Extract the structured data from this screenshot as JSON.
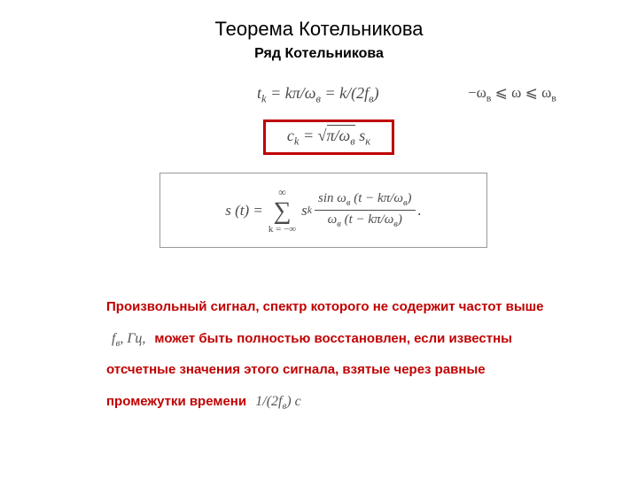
{
  "title": "Теорема Котельникова",
  "subtitle": "Ряд Котельникова",
  "formulas": {
    "tk_left": "t",
    "tk_sub": "k",
    "tk_eq": " = kπ/ω",
    "tk_sub2": "в",
    "tk_eq2": " = k/(2f",
    "tk_sub3": "в",
    "tk_close": ")",
    "range_left": "−ω",
    "range_sub1": "в",
    "range_mid": " ⩽ ω ⩽ ω",
    "range_sub2": "в",
    "ck_c": "c",
    "ck_sub": "k",
    "ck_eq": " = ",
    "ck_sqrt": "π/ω",
    "ck_sqrt_sub": "в",
    "ck_tail": " s",
    "ck_tail_sub": "к",
    "s_left": "s (t) = ",
    "sum_top": "∞",
    "sum_bot": "k = −∞",
    "s_sk": " s",
    "s_sk_sub": "k",
    "frac_top_a": "sin ω",
    "frac_top_sub1": "в",
    "frac_top_b": " (t − kπ/ω",
    "frac_top_sub2": "в",
    "frac_top_c": ")",
    "frac_bot_a": "ω",
    "frac_bot_sub1": "в",
    "frac_bot_b": " (t − kπ/ω",
    "frac_bot_sub2": "в",
    "frac_bot_c": ")",
    "period": "."
  },
  "paragraph": {
    "p1": "Произвольный сигнал, спектр которого не содержит частот выше",
    "inline1_a": "f",
    "inline1_sub": "в",
    "inline1_b": ",   Гц,",
    "p2": "может быть полностью восстановлен, если известны отсчетные значения этого сигнала, взятые через равные промежутки времени",
    "inline2_a": "1/(2f",
    "inline2_sub": "в",
    "inline2_b": ")  с"
  },
  "styles": {
    "title_color": "#000000",
    "red_color": "#c00000",
    "formula_color": "#4a4a4a",
    "bg_color": "#ffffff"
  }
}
